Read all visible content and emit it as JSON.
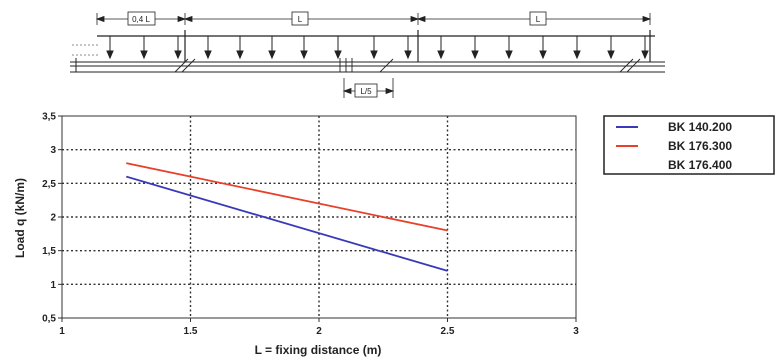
{
  "diagram": {
    "top_text": "",
    "span_labels": [
      "0,4 L",
      "L",
      "L"
    ],
    "bottom_label": "L/5"
  },
  "chart_data": {
    "type": "line",
    "title": "",
    "xlabel": "L = fixing distance (m)",
    "ylabel": "Load q (kN/m)",
    "xlim": [
      1,
      3
    ],
    "ylim": [
      0.5,
      3.5
    ],
    "x_ticks": [
      "1",
      "1.5",
      "2",
      "2.5",
      "3"
    ],
    "y_ticks": [
      "0,5",
      "1",
      "1,5",
      "2",
      "2,5",
      "3",
      "3,5"
    ],
    "x_tick_values": [
      1,
      1.5,
      2,
      2.5,
      3
    ],
    "y_tick_values": [
      0.5,
      1,
      1.5,
      2,
      2.5,
      3,
      3.5
    ],
    "grid": true,
    "legend_position": "right",
    "series": [
      {
        "name": "BK 140.200",
        "color": "#3a3ab8",
        "x": [
          1.25,
          2.5
        ],
        "y": [
          2.6,
          1.2
        ]
      },
      {
        "name": "BK 176.300",
        "color": "#e8402a",
        "x": [
          1.25,
          2.5
        ],
        "y": [
          2.8,
          1.8
        ]
      },
      {
        "name": "BK 176.400",
        "color": "#ffffff",
        "x": [],
        "y": []
      }
    ]
  }
}
